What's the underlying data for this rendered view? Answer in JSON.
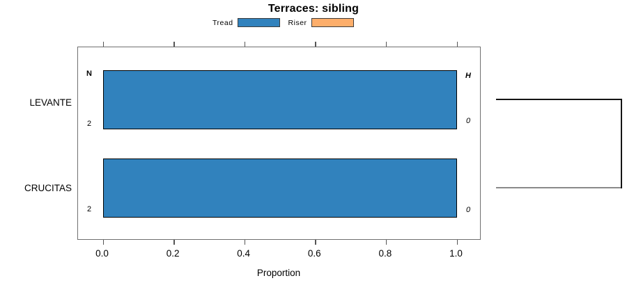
{
  "title": "Terraces: sibling",
  "legend": {
    "items": [
      {
        "label": "Tread",
        "color": "#3182bd"
      },
      {
        "label": "Riser",
        "color": "#fdae6b"
      }
    ]
  },
  "chart_data": {
    "type": "bar",
    "orientation": "horizontal",
    "title": "Terraces: sibling",
    "xlabel": "Proportion",
    "xlim": [
      0,
      1
    ],
    "xticks": [
      "0.0",
      "0.2",
      "0.4",
      "0.6",
      "0.8",
      "1.0"
    ],
    "categories": [
      "LEVANTE",
      "CRUCITAS"
    ],
    "series": [
      {
        "name": "Tread",
        "color": "#3182bd",
        "values": [
          1.0,
          1.0
        ]
      },
      {
        "name": "Riser",
        "color": "#fdae6b",
        "values": [
          0.0,
          0.0
        ]
      }
    ],
    "rows": [
      {
        "category": "LEVANTE",
        "n_header": "N",
        "n_value": "2",
        "h_header": "H",
        "h_value": "0"
      },
      {
        "category": "CRUCITAS",
        "n_value": "2",
        "h_value": "0"
      }
    ],
    "legend_position": "top",
    "grid": false,
    "bar_border_color": "#000000",
    "box_color": "#6f6f6f"
  }
}
